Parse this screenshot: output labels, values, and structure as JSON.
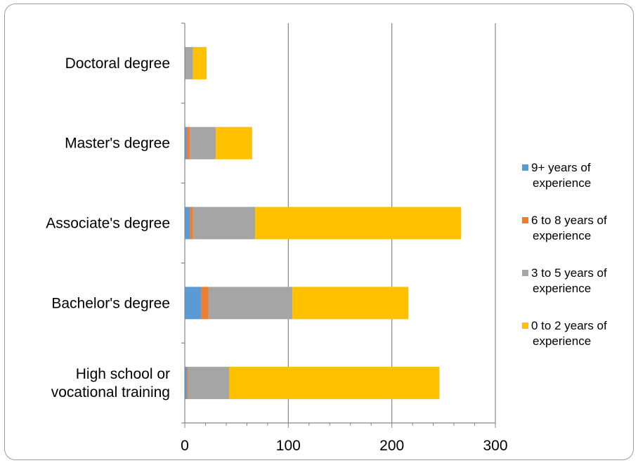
{
  "chart_data": {
    "type": "bar",
    "orientation": "horizontal",
    "stacked": true,
    "title": "",
    "xlabel": "",
    "ylabel": "",
    "categories": [
      "Doctoral degree",
      "Master's degree",
      "Associate's degree",
      "Bachelor's degree",
      "High school or vocational training"
    ],
    "category_lines": [
      [
        "Doctoral degree"
      ],
      [
        "Master's degree"
      ],
      [
        "Associate's degree"
      ],
      [
        "Bachelor's degree"
      ],
      [
        "High school or",
        "vocational training"
      ]
    ],
    "series": [
      {
        "name": "9+ years of experience",
        "legend_lines": [
          "9+ years of",
          "experience"
        ],
        "color": "#5b9bd5",
        "values": [
          0,
          2,
          5,
          16,
          2
        ]
      },
      {
        "name": "6 to 8 years of experience",
        "legend_lines": [
          "6 to 8 years of",
          "experience"
        ],
        "color": "#ed7d31",
        "values": [
          0,
          3,
          3,
          7,
          1
        ]
      },
      {
        "name": "3 to 5 years of experience",
        "legend_lines": [
          "3 to 5 years of",
          "experience"
        ],
        "color": "#a5a5a5",
        "values": [
          8,
          25,
          60,
          81,
          40
        ]
      },
      {
        "name": "0 to 2 years of experience",
        "legend_lines": [
          "0 to 2 years of",
          "experience"
        ],
        "color": "#ffc000",
        "values": [
          13,
          35,
          199,
          112,
          203
        ]
      }
    ],
    "xlim": [
      0,
      300
    ],
    "xticks": [
      0,
      100,
      200,
      300
    ],
    "xtick_labels": [
      "0",
      "100",
      "200",
      "300"
    ],
    "grid": "vertical major gridlines",
    "legend": "right"
  }
}
